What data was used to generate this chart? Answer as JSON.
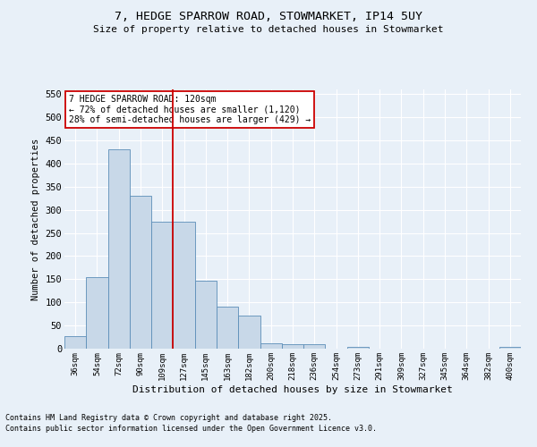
{
  "title_line1": "7, HEDGE SPARROW ROAD, STOWMARKET, IP14 5UY",
  "title_line2": "Size of property relative to detached houses in Stowmarket",
  "xlabel": "Distribution of detached houses by size in Stowmarket",
  "ylabel": "Number of detached properties",
  "bar_labels": [
    "36sqm",
    "54sqm",
    "72sqm",
    "90sqm",
    "109sqm",
    "127sqm",
    "145sqm",
    "163sqm",
    "182sqm",
    "200sqm",
    "218sqm",
    "236sqm",
    "254sqm",
    "273sqm",
    "291sqm",
    "309sqm",
    "327sqm",
    "345sqm",
    "364sqm",
    "382sqm",
    "400sqm"
  ],
  "bar_values": [
    27,
    155,
    430,
    330,
    275,
    275,
    147,
    90,
    72,
    12,
    10,
    10,
    0,
    4,
    0,
    0,
    0,
    0,
    0,
    0,
    4
  ],
  "bar_color": "#c8d8e8",
  "bar_edge_color": "#5b8db8",
  "vline_color": "#cc0000",
  "annotation_text": "7 HEDGE SPARROW ROAD: 120sqm\n← 72% of detached houses are smaller (1,120)\n28% of semi-detached houses are larger (429) →",
  "annotation_box_color": "#ffffff",
  "annotation_box_edge": "#cc0000",
  "ylim": [
    0,
    560
  ],
  "yticks": [
    0,
    50,
    100,
    150,
    200,
    250,
    300,
    350,
    400,
    450,
    500,
    550
  ],
  "footnote1": "Contains HM Land Registry data © Crown copyright and database right 2025.",
  "footnote2": "Contains public sector information licensed under the Open Government Licence v3.0.",
  "bg_color": "#e8f0f8",
  "plot_bg_color": "#e8f0f8"
}
